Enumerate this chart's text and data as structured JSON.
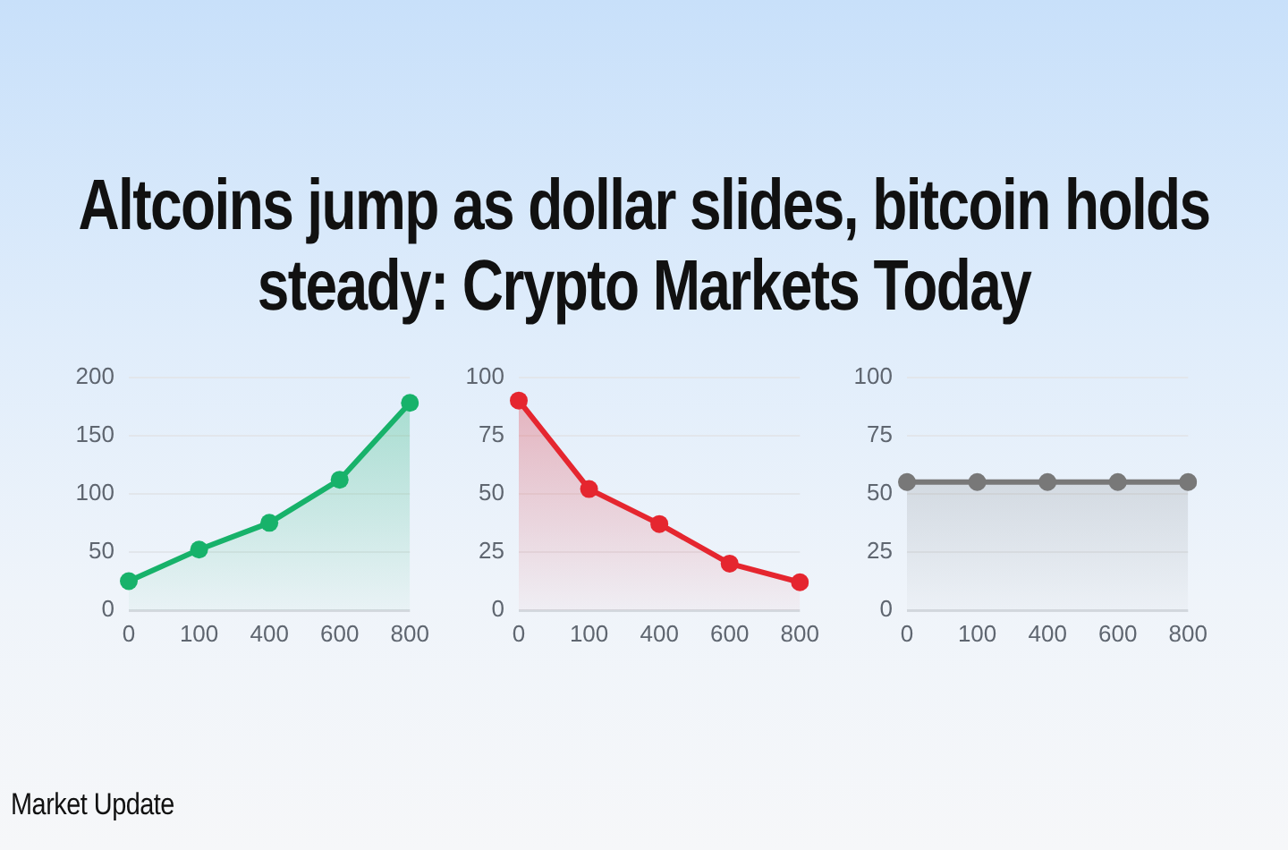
{
  "chart_data": [
    {
      "type": "area",
      "title": "Altcoins jump as dollar slides, bitcoin holds steady: Crypto Markets Today",
      "annotations": [
        "Market Update"
      ],
      "categories": [
        "0",
        "100",
        "400",
        "600",
        "800"
      ],
      "values": [
        25,
        52,
        75,
        112,
        178
      ],
      "color": "#17b26a",
      "ylim": [
        0,
        200
      ],
      "yticks": [
        0,
        50,
        100,
        150,
        200
      ],
      "grid": "y",
      "marker": "circle"
    },
    {
      "type": "area",
      "categories": [
        "0",
        "100",
        "400",
        "600",
        "800"
      ],
      "values": [
        90,
        52,
        37,
        20,
        12
      ],
      "color": "#e5262f",
      "ylim": [
        0,
        100
      ],
      "yticks": [
        0,
        25,
        50,
        75,
        100
      ],
      "grid": "y",
      "marker": "circle"
    },
    {
      "type": "area",
      "categories": [
        "0",
        "100",
        "400",
        "600",
        "800"
      ],
      "values": [
        55,
        55,
        55,
        55,
        55
      ],
      "color": "#787878",
      "ylim": [
        0,
        100
      ],
      "yticks": [
        0,
        25,
        50,
        75,
        100
      ],
      "grid": "y",
      "marker": "circle"
    }
  ]
}
